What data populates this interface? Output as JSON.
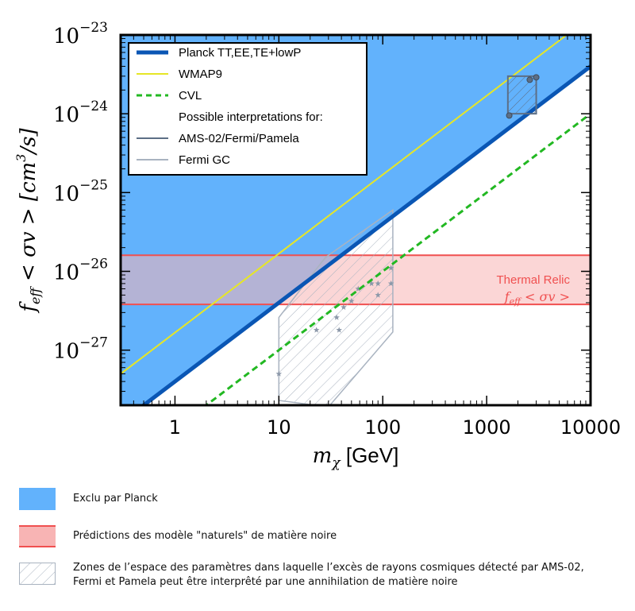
{
  "chart_data": {
    "type": "line",
    "xscale": "log",
    "yscale": "log",
    "xlim": [
      0.3,
      10000
    ],
    "ylim": [
      2e-28,
      1e-23
    ],
    "xlabel_math": "m",
    "xlabel_sub": "χ",
    "xlabel_unit": "[GeV]",
    "ylabel_f": "f",
    "ylabel_sub": "eff",
    "ylabel_rest": "< σv > [cm",
    "ylabel_sup": "3",
    "ylabel_end": "/s]",
    "x_ticks": [
      {
        "value": 1,
        "label": "1"
      },
      {
        "value": 10,
        "label": "10"
      },
      {
        "value": 100,
        "label": "100"
      },
      {
        "value": 1000,
        "label": "1000"
      },
      {
        "value": 10000,
        "label": "10000"
      }
    ],
    "y_ticks": [
      {
        "value": 1e-27,
        "exp": "−27"
      },
      {
        "value": 1e-26,
        "exp": "−26"
      },
      {
        "value": 1e-25,
        "exp": "−25"
      },
      {
        "value": 1e-24,
        "exp": "−24"
      },
      {
        "value": 1e-23,
        "exp": "−23"
      }
    ],
    "tick_base": "10",
    "series": [
      {
        "name": "Planck TT,EE,TE+lowP",
        "color": "#0a56b4",
        "x": [
          0.3,
          10000
        ],
        "y": [
          1.2e-28,
          4e-24
        ]
      },
      {
        "name": "WMAP9",
        "color": "#e6e626",
        "x": [
          0.3,
          10000
        ],
        "y": [
          5e-28,
          1.7e-23
        ]
      },
      {
        "name": "CVL",
        "color": "#22b822",
        "x": [
          0.3,
          10000
        ],
        "y": [
          3e-29,
          1e-24
        ]
      }
    ],
    "excluded_region": {
      "color": "#62b2fc",
      "boundary": "Planck TT,EE,TE+lowP"
    },
    "thermal_relic_band": {
      "ymin": 3.8e-27,
      "ymax": 1.6e-26,
      "fill": "#f8b4b4",
      "edge": "#f05050",
      "label1": "Thermal Relic",
      "label2_f": "f",
      "label2_sub": "eff",
      "label2_rest": "< σv >"
    },
    "ams_box": {
      "polygon": [
        [
          1600,
          1e-24
        ],
        [
          3000,
          1e-24
        ],
        [
          3000,
          3e-24
        ],
        [
          1600,
          3e-24
        ]
      ],
      "points": [
        [
          1650,
          9.5e-25
        ],
        [
          2600,
          2.7e-24
        ],
        [
          3000,
          2.9e-24
        ]
      ]
    },
    "fermi_gc_region": {
      "polygon": [
        [
          10,
          2.3e-28
        ],
        [
          10,
          2.6e-27
        ],
        [
          28,
          1.5e-26
        ],
        [
          125,
          6e-26
        ],
        [
          125,
          1.7e-27
        ],
        [
          30,
          1.9e-28
        ]
      ]
    },
    "fermi_gc_points": [
      [
        10,
        5e-28
      ],
      [
        23,
        1.8e-27
      ],
      [
        36,
        2.6e-27
      ],
      [
        38,
        1.8e-27
      ],
      [
        42,
        3.5e-27
      ],
      [
        50,
        4.2e-27
      ],
      [
        58,
        6e-27
      ],
      [
        78,
        7e-27
      ],
      [
        90,
        7e-27
      ],
      [
        90,
        5e-27
      ],
      [
        120,
        7e-27
      ],
      [
        120,
        1.1e-26
      ]
    ],
    "legend": {
      "position": "top-left",
      "entries": [
        {
          "label": "Planck TT,EE,TE+lowP",
          "color": "#0a56b4",
          "style": "thick"
        },
        {
          "label": "WMAP9",
          "color": "#e6e626",
          "style": "solid"
        },
        {
          "label": "CVL",
          "color": "#22b822",
          "style": "dashed"
        },
        {
          "label": "Possible interpretations for:",
          "color": "",
          "style": "none"
        },
        {
          "label": "AMS-02/Fermi/Pamela",
          "color": "#5d6f86",
          "style": "solid"
        },
        {
          "label": "Fermi GC",
          "color": "#a9b3c0",
          "style": "solid"
        }
      ]
    }
  },
  "explanation_legend": [
    {
      "text": "Exclu par Planck"
    },
    {
      "text": "Prédictions des modèle \"naturels\" de matière noire"
    },
    {
      "text": "Zones de l’espace des paramètres dans laquelle l’excès de rayons cosmiques détecté par AMS-02, Fermi et Pamela peut être interprêté par une annihilation de matière noire"
    }
  ]
}
